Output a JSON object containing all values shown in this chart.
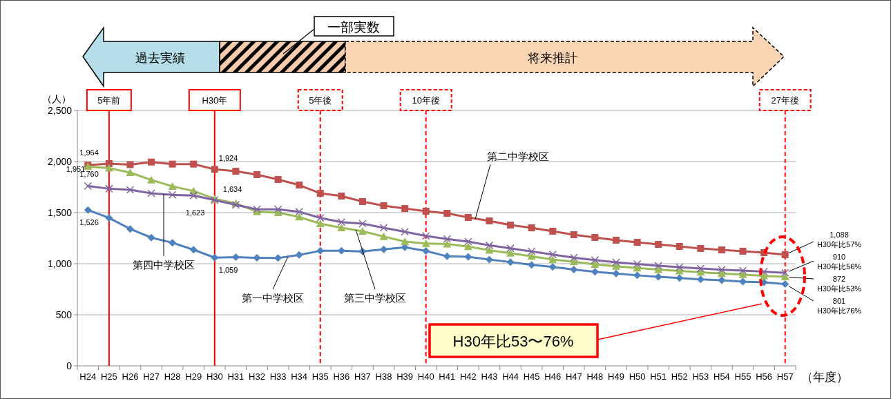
{
  "chart_data": {
    "type": "line",
    "ylabel": "（人）",
    "xlabel": "（年度）",
    "categories": [
      "H24",
      "H25",
      "H26",
      "H27",
      "H28",
      "H29",
      "H30",
      "H31",
      "H32",
      "H33",
      "H34",
      "H35",
      "H36",
      "H37",
      "H38",
      "H39",
      "H40",
      "H41",
      "H42",
      "H43",
      "H44",
      "H45",
      "H46",
      "H47",
      "H48",
      "H49",
      "H50",
      "H51",
      "H52",
      "H53",
      "H54",
      "H55",
      "H56",
      "H57"
    ],
    "ylim": [
      0,
      2500
    ],
    "yticks": [
      0,
      500,
      {
        "value": 1000,
        "label": "1,000"
      },
      {
        "value": 1500,
        "label": "1,500"
      },
      {
        "value": 2000,
        "label": "2,000"
      },
      {
        "value": 2500,
        "label": "2,500"
      }
    ],
    "grid": "y",
    "series": [
      {
        "name": "第一中学校区",
        "color": "#4f81bd",
        "marker": "diamond",
        "values": [
          1526,
          1448,
          1340,
          1255,
          1205,
          1137,
          1059,
          1065,
          1058,
          1055,
          1086,
          1126,
          1126,
          1120,
          1140,
          1161,
          1125,
          1072,
          1067,
          1040,
          1016,
          989,
          968,
          943,
          920,
          903,
          886,
          872,
          859,
          847,
          838,
          825,
          818,
          801
        ],
        "value_labels": [
          "1,526",
          null,
          null,
          null,
          null,
          null,
          "1,059",
          null,
          null,
          null,
          null,
          null,
          null,
          null,
          null,
          null,
          null,
          null,
          null,
          null,
          null,
          null,
          null,
          null,
          null,
          null,
          null,
          null,
          null,
          null,
          null,
          null,
          null,
          "801\nH30年比76%"
        ]
      },
      {
        "name": "第二中学校区",
        "color": "#c0504d",
        "marker": "square",
        "values": [
          1964,
          1980,
          1970,
          1995,
          1975,
          1975,
          1924,
          1905,
          1872,
          1824,
          1770,
          1689,
          1662,
          1608,
          1568,
          1540,
          1514,
          1493,
          1453,
          1419,
          1378,
          1351,
          1318,
          1284,
          1257,
          1230,
          1209,
          1189,
          1169,
          1149,
          1135,
          1122,
          1108,
          1088
        ],
        "value_labels": [
          "1,964",
          null,
          null,
          null,
          null,
          null,
          "1,924",
          null,
          null,
          null,
          null,
          null,
          null,
          null,
          null,
          null,
          null,
          null,
          null,
          null,
          null,
          null,
          null,
          null,
          null,
          null,
          null,
          null,
          null,
          null,
          null,
          null,
          null,
          "1,088\nH30年比57%"
        ]
      },
      {
        "name": "第三中学校区",
        "color": "#9bbb59",
        "marker": "triangle",
        "values": [
          1951,
          1935,
          1892,
          1820,
          1757,
          1712,
          1634,
          1590,
          1509,
          1500,
          1457,
          1392,
          1351,
          1318,
          1266,
          1216,
          1198,
          1192,
          1168,
          1132,
          1103,
          1072,
          1041,
          1018,
          994,
          975,
          958,
          943,
          929,
          917,
          903,
          893,
          880,
          872
        ],
        "value_labels": [
          "1,951",
          null,
          null,
          null,
          null,
          null,
          "1,634",
          null,
          null,
          null,
          null,
          null,
          null,
          null,
          null,
          null,
          null,
          null,
          null,
          null,
          null,
          null,
          null,
          null,
          null,
          null,
          null,
          null,
          null,
          null,
          null,
          null,
          null,
          "872\nH30年比53%"
        ]
      },
      {
        "name": "第四中学校区",
        "color": "#8064a2",
        "marker": "cross",
        "values": [
          1760,
          1734,
          1723,
          1689,
          1674,
          1667,
          1623,
          1576,
          1532,
          1532,
          1509,
          1448,
          1407,
          1392,
          1351,
          1313,
          1272,
          1241,
          1216,
          1180,
          1151,
          1120,
          1089,
          1059,
          1035,
          1014,
          997,
          980,
          966,
          953,
          941,
          932,
          922,
          910
        ],
        "value_labels": [
          "1,760",
          null,
          null,
          null,
          null,
          null,
          "1,623",
          null,
          null,
          null,
          null,
          null,
          null,
          null,
          null,
          null,
          null,
          null,
          null,
          null,
          null,
          null,
          null,
          null,
          null,
          null,
          null,
          null,
          null,
          null,
          null,
          null,
          null,
          "910\nH30年比56%"
        ]
      }
    ],
    "ref_lines": [
      {
        "axis": "x",
        "value": "H25",
        "label": "5年前",
        "color": "#ff0000",
        "line_style": "solid"
      },
      {
        "axis": "x",
        "value": "H30",
        "label": "H30年",
        "color": "#ff0000",
        "line_style": "solid"
      },
      {
        "axis": "x",
        "value": "H35",
        "label": "5年後",
        "color": "#ff0000",
        "line_style": "dashed"
      },
      {
        "axis": "x",
        "value": "H40",
        "label": "10年後",
        "color": "#ff0000",
        "line_style": "dashed"
      },
      {
        "axis": "x",
        "value": "H57",
        "label": "27年後",
        "color": "#ff0000",
        "line_style": "dashed"
      }
    ],
    "annotations": [
      "過去実績",
      "一部実数",
      "将来推計",
      "H30年比53〜76%"
    ]
  }
}
